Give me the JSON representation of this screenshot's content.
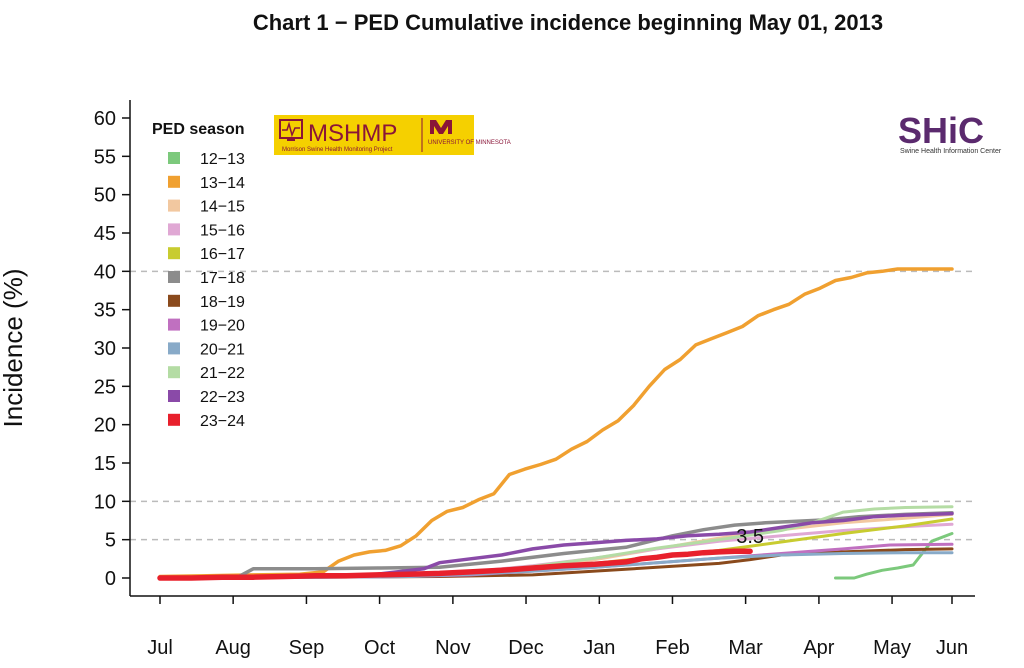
{
  "chart_data": {
    "type": "line",
    "title": "Chart 1 − PED Cumulative incidence beginning May 01, 2013",
    "ylabel": "Incidence (%)",
    "xlabel": "",
    "ylim": [
      0,
      60
    ],
    "yticks": [
      0,
      5,
      10,
      15,
      20,
      25,
      30,
      35,
      40,
      45,
      50,
      55,
      60
    ],
    "xlim": [
      0,
      51
    ],
    "x_unit": "weeks from July 1",
    "month_labels": [
      "Jul",
      "Aug",
      "Sep",
      "Oct",
      "Nov",
      "Dec",
      "Jan",
      "Feb",
      "Mar",
      "Apr",
      "May",
      "Jun"
    ],
    "month_positions": [
      0,
      4.71,
      9.43,
      14.14,
      18.86,
      23.57,
      28.29,
      33,
      37.71,
      42.43,
      47.14,
      51
    ],
    "reference_lines": [
      5,
      10,
      40
    ],
    "legend": {
      "title": "PED season",
      "placement": "top-left"
    },
    "annotations": [
      {
        "text": "3.5",
        "x": 38,
        "y": 3.5
      }
    ],
    "series": [
      {
        "name": "12−13",
        "color": "#7cc97c",
        "width": 3,
        "points": [
          [
            43.5,
            0
          ],
          [
            44.7,
            0
          ],
          [
            45.5,
            0.5
          ],
          [
            46.5,
            1
          ],
          [
            47.5,
            1.3
          ],
          [
            48.5,
            1.7
          ],
          [
            49.7,
            4.8
          ],
          [
            51,
            5.8
          ]
        ]
      },
      {
        "name": "13−14",
        "color": "#f0a030",
        "width": 3.5,
        "points": [
          [
            0,
            0.2
          ],
          [
            3,
            0.3
          ],
          [
            6,
            0.4
          ],
          [
            9,
            0.5
          ],
          [
            10.5,
            0.8
          ],
          [
            11.5,
            2.2
          ],
          [
            12.5,
            3
          ],
          [
            13.5,
            3.4
          ],
          [
            14.5,
            3.6
          ],
          [
            15.5,
            4.2
          ],
          [
            16.5,
            5.5
          ],
          [
            17.5,
            7.5
          ],
          [
            18.5,
            8.7
          ],
          [
            19.5,
            9.2
          ],
          [
            20.5,
            10.2
          ],
          [
            21.5,
            11
          ],
          [
            22.5,
            13.5
          ],
          [
            23.5,
            14.2
          ],
          [
            24.5,
            14.8
          ],
          [
            25.5,
            15.5
          ],
          [
            26.5,
            16.8
          ],
          [
            27.5,
            17.8
          ],
          [
            28.5,
            19.3
          ],
          [
            29.5,
            20.5
          ],
          [
            30.5,
            22.5
          ],
          [
            31.5,
            25
          ],
          [
            32.5,
            27.2
          ],
          [
            33.5,
            28.5
          ],
          [
            34.5,
            30.4
          ],
          [
            35.5,
            31.2
          ],
          [
            36.5,
            32
          ],
          [
            37.5,
            32.8
          ],
          [
            38.5,
            34.2
          ],
          [
            39.5,
            35
          ],
          [
            40.5,
            35.7
          ],
          [
            41.5,
            37
          ],
          [
            42.5,
            37.8
          ],
          [
            43.5,
            38.8
          ],
          [
            44.5,
            39.2
          ],
          [
            45.5,
            39.8
          ],
          [
            46.5,
            40
          ],
          [
            47.5,
            40.3
          ],
          [
            49.5,
            40.3
          ],
          [
            51,
            40.3
          ]
        ]
      },
      {
        "name": "14−15",
        "color": "#f2c8a0",
        "width": 3,
        "points": [
          [
            0,
            0.1
          ],
          [
            10,
            0.2
          ],
          [
            14,
            0.3
          ],
          [
            20,
            0.6
          ],
          [
            24,
            1.5
          ],
          [
            28,
            2.4
          ],
          [
            32,
            3.8
          ],
          [
            36,
            5.2
          ],
          [
            40,
            6.3
          ],
          [
            44,
            7.2
          ],
          [
            48,
            7.8
          ],
          [
            51,
            8.3
          ]
        ]
      },
      {
        "name": "15−16",
        "color": "#e0a8d4",
        "width": 3,
        "points": [
          [
            0,
            0
          ],
          [
            10,
            0.1
          ],
          [
            16,
            0.4
          ],
          [
            20,
            0.8
          ],
          [
            24,
            1.6
          ],
          [
            28,
            2.6
          ],
          [
            32,
            3.8
          ],
          [
            36,
            4.8
          ],
          [
            40,
            5.5
          ],
          [
            44,
            6.2
          ],
          [
            48,
            6.7
          ],
          [
            51,
            7
          ]
        ]
      },
      {
        "name": "16−17",
        "color": "#c8cc30",
        "width": 3,
        "points": [
          [
            0,
            0
          ],
          [
            10,
            0.1
          ],
          [
            16,
            0.3
          ],
          [
            20,
            0.6
          ],
          [
            24,
            1.1
          ],
          [
            28,
            1.9
          ],
          [
            32,
            2.8
          ],
          [
            36,
            3.6
          ],
          [
            40,
            4.7
          ],
          [
            44,
            5.8
          ],
          [
            48,
            6.8
          ],
          [
            51,
            7.7
          ]
        ]
      },
      {
        "name": "17−18",
        "color": "#8c8c8c",
        "width": 3.5,
        "points": [
          [
            0,
            0
          ],
          [
            5,
            0.1
          ],
          [
            6,
            1.2
          ],
          [
            10,
            1.2
          ],
          [
            14,
            1.3
          ],
          [
            18,
            1.4
          ],
          [
            22,
            2.2
          ],
          [
            26,
            3.2
          ],
          [
            30,
            4
          ],
          [
            33,
            5.5
          ],
          [
            35,
            6.3
          ],
          [
            37,
            6.9
          ],
          [
            39,
            7.2
          ],
          [
            41,
            7.4
          ],
          [
            43,
            7.6
          ],
          [
            45,
            8
          ],
          [
            48,
            8.3
          ],
          [
            51,
            8.5
          ]
        ]
      },
      {
        "name": "18−19",
        "color": "#8a4a1c",
        "width": 3,
        "points": [
          [
            0,
            0
          ],
          [
            10,
            0.1
          ],
          [
            18,
            0.2
          ],
          [
            24,
            0.4
          ],
          [
            28,
            0.9
          ],
          [
            32,
            1.4
          ],
          [
            36,
            1.9
          ],
          [
            38,
            2.4
          ],
          [
            40,
            3
          ],
          [
            44,
            3.4
          ],
          [
            48,
            3.7
          ],
          [
            51,
            3.8
          ]
        ]
      },
      {
        "name": "19−20",
        "color": "#c070c0",
        "width": 3,
        "points": [
          [
            0,
            0
          ],
          [
            10,
            0.1
          ],
          [
            16,
            0.2
          ],
          [
            20,
            0.4
          ],
          [
            24,
            0.9
          ],
          [
            28,
            1.4
          ],
          [
            32,
            2
          ],
          [
            36,
            2.6
          ],
          [
            40,
            3.2
          ],
          [
            44,
            3.8
          ],
          [
            47,
            4.3
          ],
          [
            51,
            4.4
          ]
        ]
      },
      {
        "name": "20−21",
        "color": "#88aac8",
        "width": 3,
        "points": [
          [
            0,
            0
          ],
          [
            10,
            0.1
          ],
          [
            16,
            0.2
          ],
          [
            20,
            0.5
          ],
          [
            24,
            0.9
          ],
          [
            28,
            1.4
          ],
          [
            32,
            2
          ],
          [
            36,
            2.6
          ],
          [
            40,
            3
          ],
          [
            44,
            3.2
          ],
          [
            48,
            3.3
          ],
          [
            51,
            3.3
          ]
        ]
      },
      {
        "name": "21−22",
        "color": "#b4dca4",
        "width": 3,
        "points": [
          [
            0,
            0
          ],
          [
            10,
            0.2
          ],
          [
            16,
            0.4
          ],
          [
            20,
            0.8
          ],
          [
            24,
            1.5
          ],
          [
            28,
            2.6
          ],
          [
            32,
            3.9
          ],
          [
            36,
            5
          ],
          [
            40,
            6.2
          ],
          [
            42,
            7.2
          ],
          [
            44,
            8.6
          ],
          [
            46,
            9
          ],
          [
            48,
            9.2
          ],
          [
            51,
            9.3
          ]
        ]
      },
      {
        "name": "22−23",
        "color": "#8a4aa8",
        "width": 3.5,
        "points": [
          [
            0,
            0
          ],
          [
            10,
            0.2
          ],
          [
            14,
            0.5
          ],
          [
            17,
            1.2
          ],
          [
            18,
            2
          ],
          [
            20,
            2.5
          ],
          [
            22,
            3
          ],
          [
            24,
            3.8
          ],
          [
            26,
            4.3
          ],
          [
            28,
            4.6
          ],
          [
            30,
            4.9
          ],
          [
            32,
            5.1
          ],
          [
            34,
            5.5
          ],
          [
            36,
            5.7
          ],
          [
            38,
            6
          ],
          [
            40,
            6.6
          ],
          [
            42,
            7.2
          ],
          [
            44,
            7.5
          ],
          [
            46,
            8
          ],
          [
            48,
            8.2
          ],
          [
            51,
            8.4
          ]
        ]
      },
      {
        "name": "23−24",
        "color": "#e8202c",
        "width": 5.5,
        "points": [
          [
            0,
            0
          ],
          [
            2,
            0
          ],
          [
            4,
            0.1
          ],
          [
            6,
            0.1
          ],
          [
            8,
            0.2
          ],
          [
            10,
            0.3
          ],
          [
            12,
            0.3
          ],
          [
            14,
            0.4
          ],
          [
            16,
            0.5
          ],
          [
            18,
            0.6
          ],
          [
            20,
            0.8
          ],
          [
            22,
            1
          ],
          [
            24,
            1.3
          ],
          [
            26,
            1.6
          ],
          [
            28,
            1.8
          ],
          [
            30,
            2.1
          ],
          [
            31,
            2.5
          ],
          [
            32,
            2.7
          ],
          [
            33,
            3
          ],
          [
            34,
            3.1
          ],
          [
            35,
            3.3
          ],
          [
            36,
            3.4
          ],
          [
            37,
            3.5
          ],
          [
            38,
            3.5
          ]
        ]
      }
    ]
  },
  "logos": {
    "mshmp": {
      "name": "MSHMP",
      "subtitle": "Morrison Swine Health Monitoring Project",
      "university": "UNIVERSITY OF MINNESOTA",
      "bg": "#f5d000",
      "fg": "#8a1538"
    },
    "shic": {
      "name": "SHiC",
      "subtitle": "Swine Health Information Center",
      "color": "#5b2a6e"
    }
  }
}
